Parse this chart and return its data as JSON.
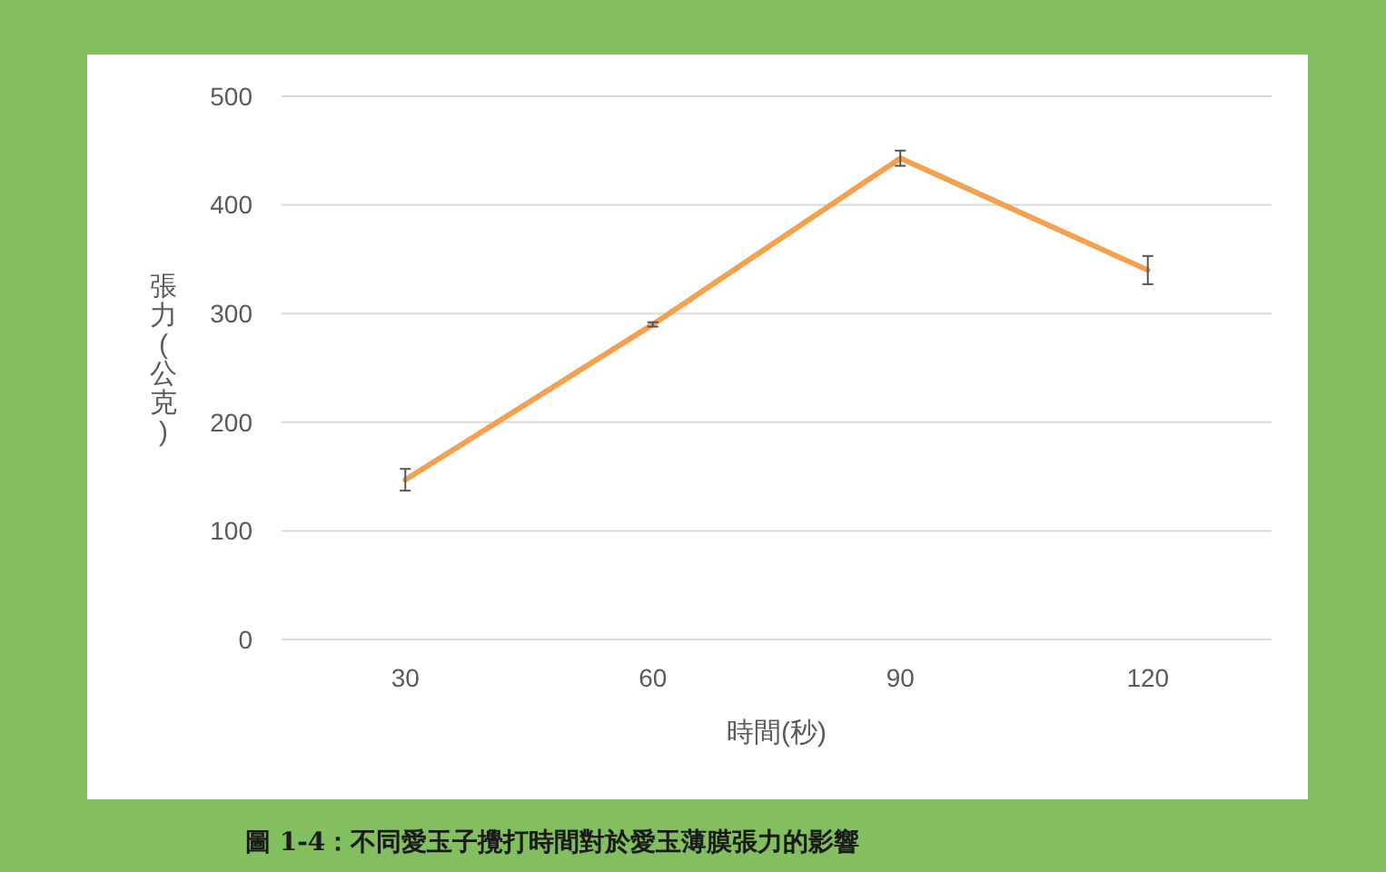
{
  "chart_data": {
    "type": "line",
    "categories": [
      "30",
      "60",
      "90",
      "120"
    ],
    "series": [
      {
        "color": "#f4a04e",
        "values": [
          147,
          290,
          443,
          340
        ],
        "errors": [
          10,
          2,
          7,
          13
        ]
      }
    ],
    "xlabel": "時間(秒)",
    "ylabel": "張力(公克)",
    "ylim": [
      0,
      500
    ],
    "yticks": [
      0,
      100,
      200,
      300,
      400,
      500
    ],
    "grid": "y",
    "marker": "none",
    "line_style": "solid",
    "annotations": [
      "圖 1-4：不同愛玉子攪打時間對於愛玉薄膜張力的影響"
    ]
  }
}
